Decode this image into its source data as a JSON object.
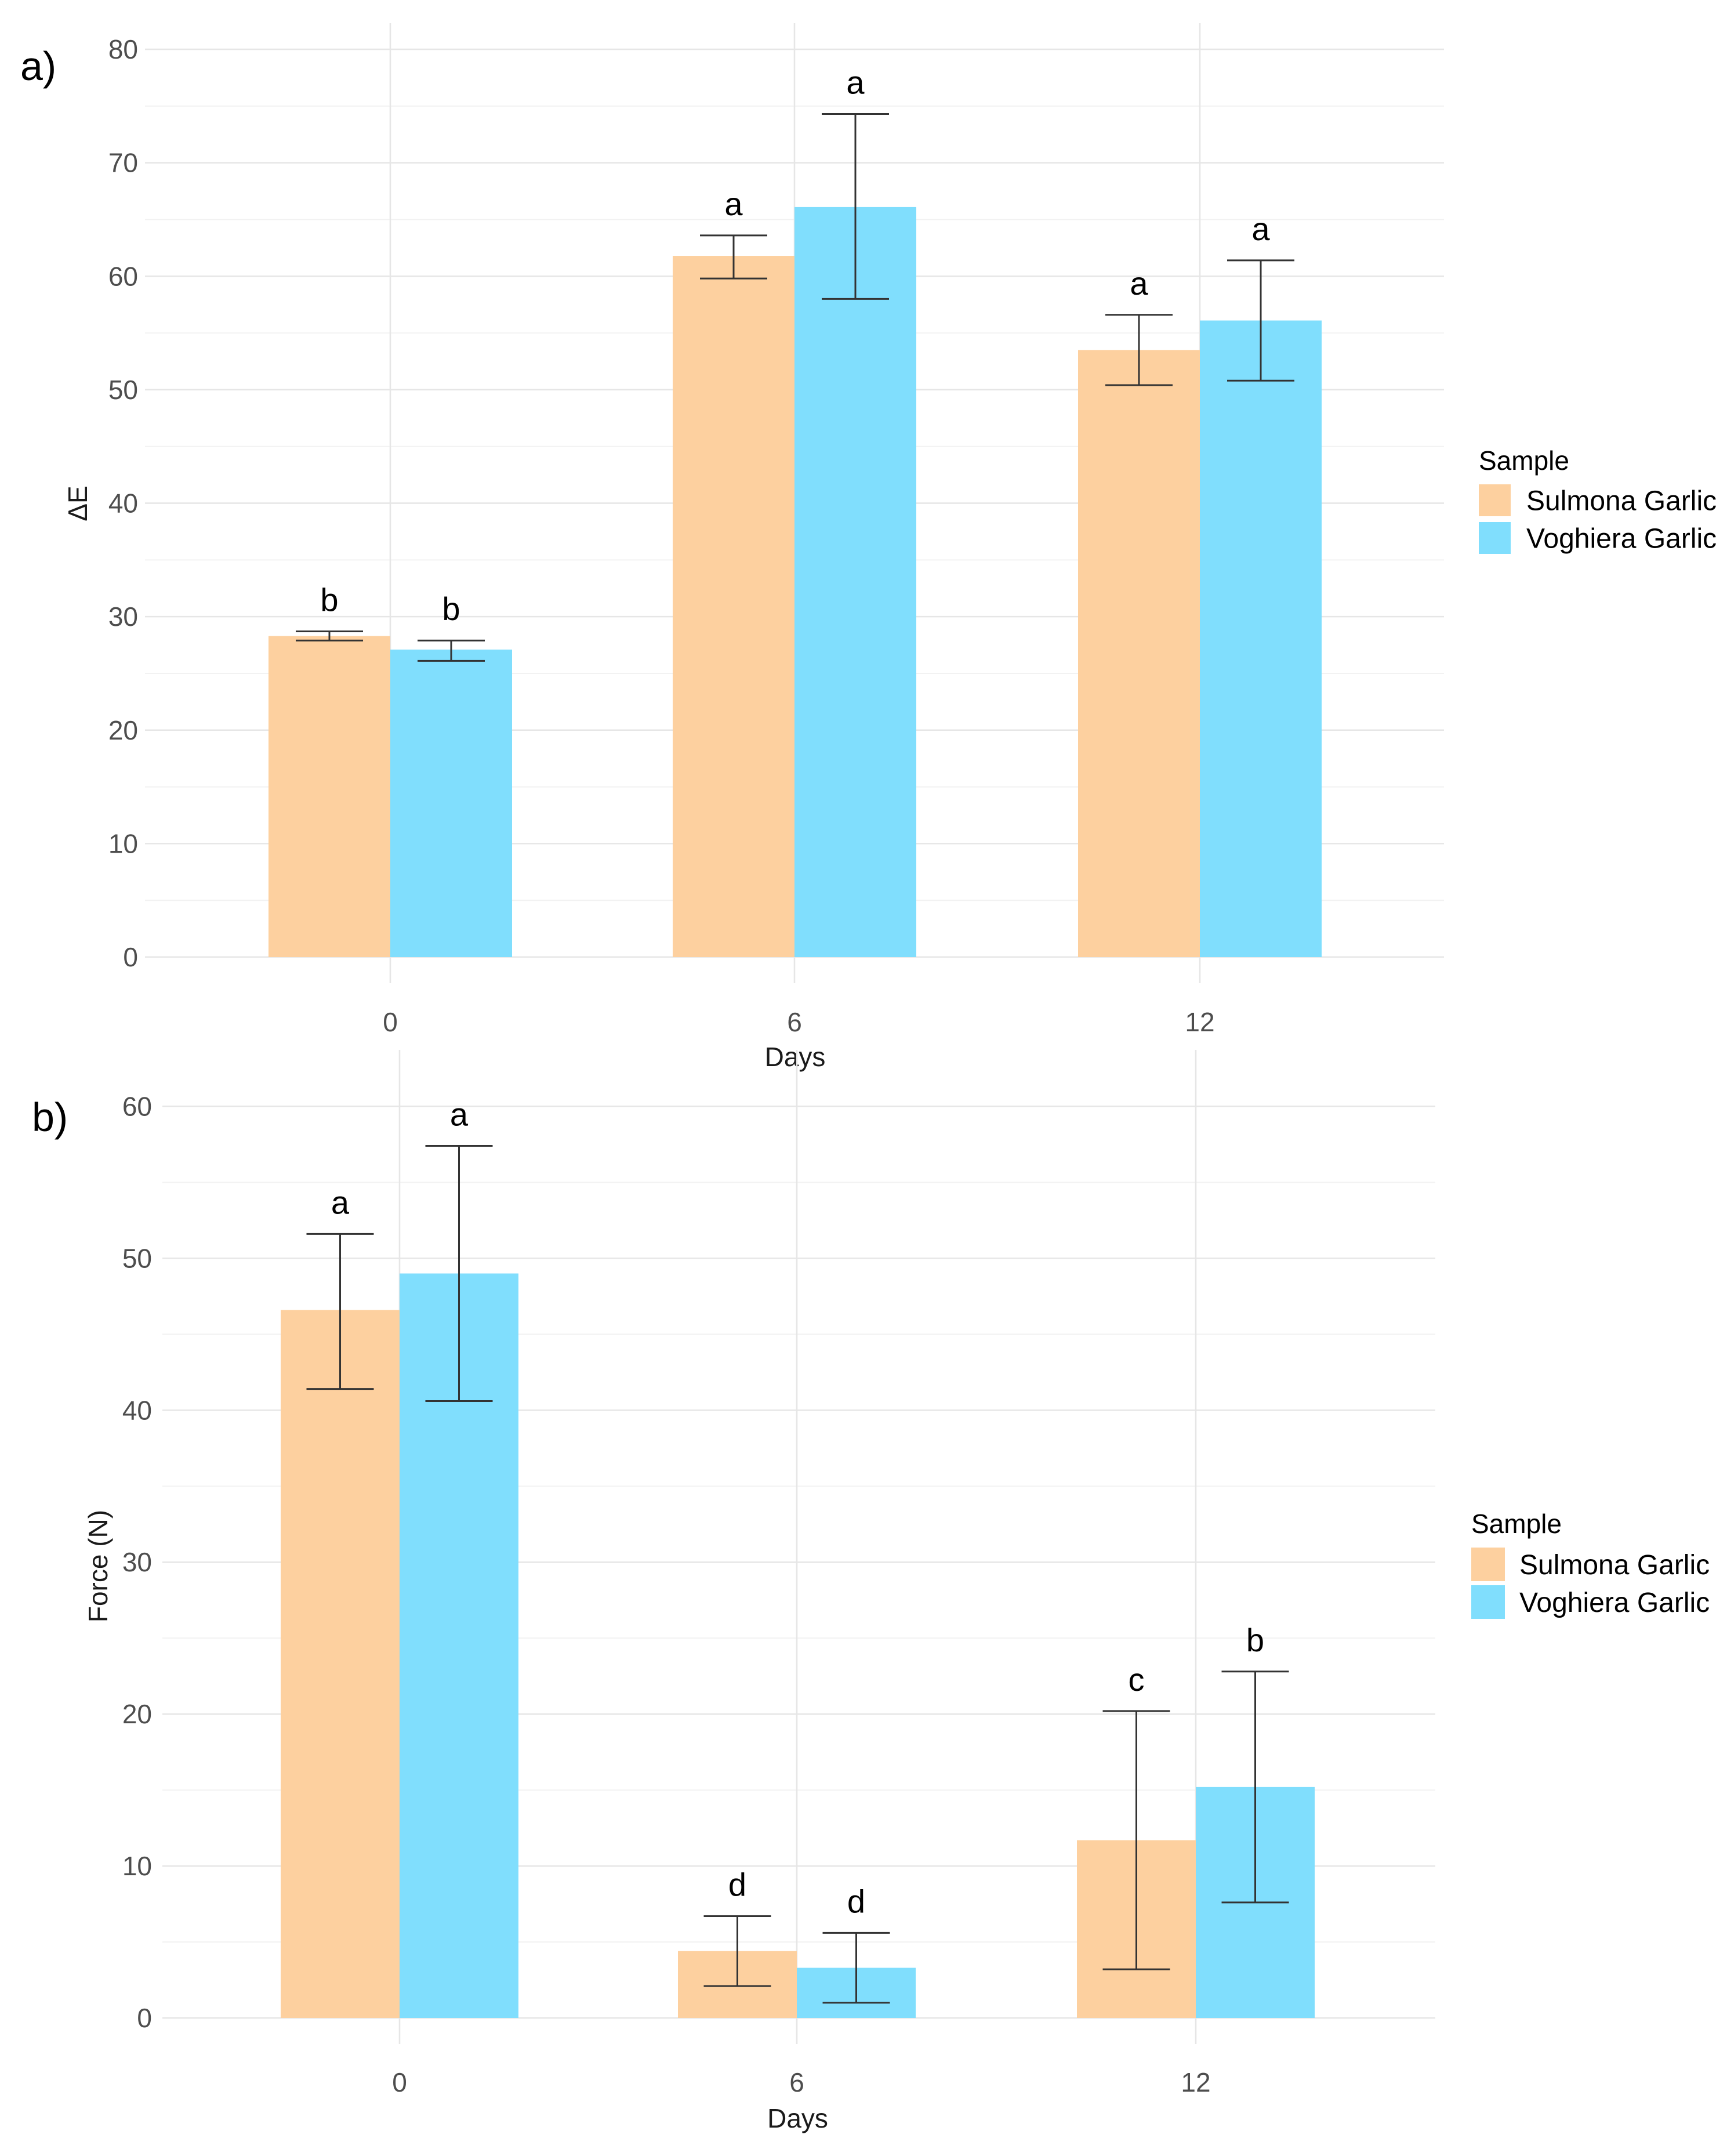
{
  "chart_data": [
    {
      "type": "bar",
      "panel_label": "a)",
      "title": "",
      "xlabel": "Days",
      "ylabel": "ΔE",
      "categories": [
        "0",
        "6",
        "12"
      ],
      "ylim": [
        0,
        80
      ],
      "yticks": [
        "0",
        "10",
        "20",
        "30",
        "40",
        "50",
        "60",
        "70",
        "80"
      ],
      "grid": true,
      "legend": {
        "title": "Sample",
        "position": "right"
      },
      "series": [
        {
          "name": "Sulmona Garlic",
          "color": "#FDD09F",
          "values": [
            28.3,
            61.8,
            53.5
          ],
          "error_low": [
            27.9,
            59.8,
            50.4
          ],
          "error_high": [
            28.7,
            63.6,
            56.6
          ],
          "labels": [
            "b",
            "a",
            "a"
          ]
        },
        {
          "name": "Voghiera Garlic",
          "color": "#80DEFD",
          "values": [
            27.1,
            66.1,
            56.1
          ],
          "error_low": [
            26.1,
            58.0,
            50.8
          ],
          "error_high": [
            27.9,
            74.3,
            61.4
          ],
          "labels": [
            "b",
            "a",
            "a"
          ]
        }
      ]
    },
    {
      "type": "bar",
      "panel_label": "b)",
      "title": "",
      "xlabel": "Days",
      "ylabel": "Force (N)",
      "categories": [
        "0",
        "6",
        "12"
      ],
      "ylim": [
        0,
        62
      ],
      "yticks": [
        "0",
        "10",
        "20",
        "30",
        "40",
        "50",
        "60"
      ],
      "grid": true,
      "legend": {
        "title": "Sample",
        "position": "right"
      },
      "series": [
        {
          "name": "Sulmona Garlic",
          "color": "#FDD09F",
          "values": [
            46.6,
            4.4,
            11.7
          ],
          "error_low": [
            41.4,
            2.1,
            3.2
          ],
          "error_high": [
            51.6,
            6.7,
            20.2
          ],
          "labels": [
            "a",
            "d",
            "c"
          ]
        },
        {
          "name": "Voghiera Garlic",
          "color": "#80DEFD",
          "values": [
            49.0,
            3.3,
            15.2
          ],
          "error_low": [
            40.6,
            1.0,
            7.6
          ],
          "error_high": [
            57.4,
            5.6,
            22.8
          ],
          "labels": [
            "a",
            "d",
            "b"
          ]
        }
      ]
    }
  ]
}
